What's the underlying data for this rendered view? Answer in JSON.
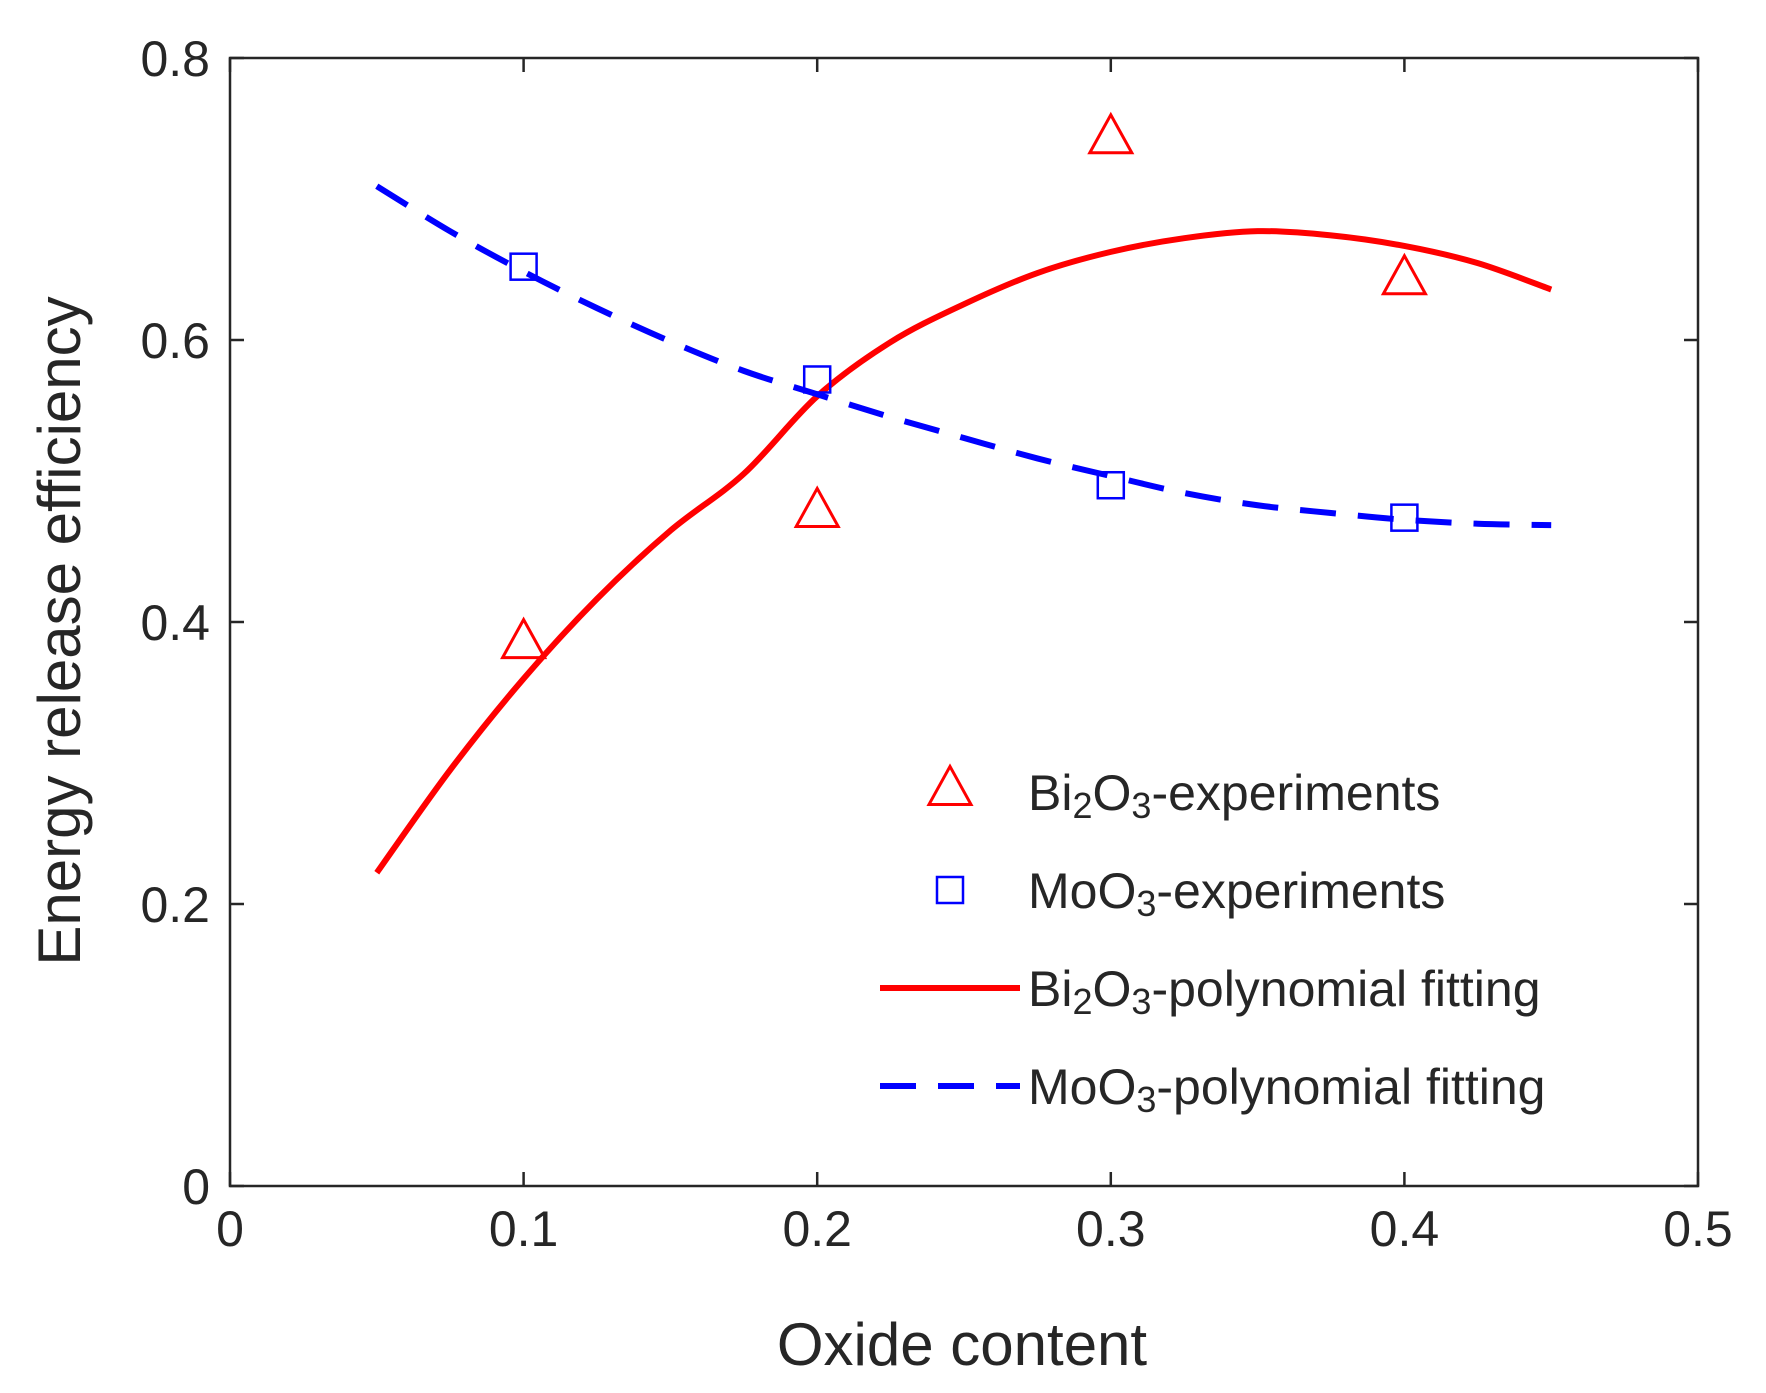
{
  "chart_data": {
    "type": "scatter",
    "title": "",
    "xlabel": "Oxide content",
    "ylabel": "Energy release efficiency",
    "xlim": [
      0,
      0.5
    ],
    "ylim": [
      0,
      0.8
    ],
    "xticks": [
      0,
      0.1,
      0.2,
      0.3,
      0.4,
      0.5
    ],
    "xtick_labels": [
      "0",
      "0.1",
      "0.2",
      "0.3",
      "0.4",
      "0.5"
    ],
    "yticks": [
      0,
      0.2,
      0.4,
      0.6,
      0.8
    ],
    "ytick_labels": [
      "0",
      "0.2",
      "0.4",
      "0.6",
      "0.8"
    ],
    "grid": false,
    "legend_position": "bottom-right",
    "series": [
      {
        "name": "Bi2O3-experiments",
        "label_parts": [
          "Bi",
          "2",
          "O",
          "3",
          "-experiments"
        ],
        "kind": "markers",
        "marker": "triangle",
        "color": "#ff0000",
        "x": [
          0.1,
          0.2,
          0.3,
          0.4
        ],
        "y": [
          0.385,
          0.478,
          0.743,
          0.643
        ]
      },
      {
        "name": "MoO3-experiments",
        "label_parts": [
          "MoO",
          "3",
          "-experiments"
        ],
        "kind": "markers",
        "marker": "square",
        "color": "#0000ff",
        "x": [
          0.1,
          0.2,
          0.3,
          0.4
        ],
        "y": [
          0.652,
          0.572,
          0.497,
          0.474
        ]
      },
      {
        "name": "Bi2O3-polynomial fitting",
        "label_parts": [
          "Bi",
          "2",
          "O",
          "3",
          "-polynomial fitting"
        ],
        "kind": "line",
        "line_style": "solid",
        "color": "#ff0000",
        "x": [
          0.05,
          0.075,
          0.1,
          0.125,
          0.15,
          0.175,
          0.2,
          0.225,
          0.25,
          0.275,
          0.3,
          0.325,
          0.35,
          0.375,
          0.4,
          0.425,
          0.45
        ],
        "y": [
          0.2222,
          0.2951,
          0.3598,
          0.4164,
          0.4648,
          0.5051,
          0.5601,
          0.5985,
          0.6254,
          0.6475,
          0.6625,
          0.6722,
          0.6772,
          0.6742,
          0.6667,
          0.6545,
          0.6358
        ]
      },
      {
        "name": "MoO3-polynomial fitting",
        "label_parts": [
          "MoO",
          "3",
          "-polynomial fitting"
        ],
        "kind": "line",
        "line_style": "dashed",
        "color": "#0000ff",
        "x": [
          0.05,
          0.075,
          0.1,
          0.125,
          0.15,
          0.175,
          0.2,
          0.225,
          0.25,
          0.275,
          0.3,
          0.325,
          0.35,
          0.375,
          0.4,
          0.425,
          0.45
        ],
        "y": [
          0.7091,
          0.6771,
          0.6485,
          0.6226,
          0.599,
          0.5781,
          0.5615,
          0.5453,
          0.5305,
          0.516,
          0.5035,
          0.4915,
          0.4828,
          0.4773,
          0.4725,
          0.4697,
          0.4687
        ]
      }
    ]
  }
}
